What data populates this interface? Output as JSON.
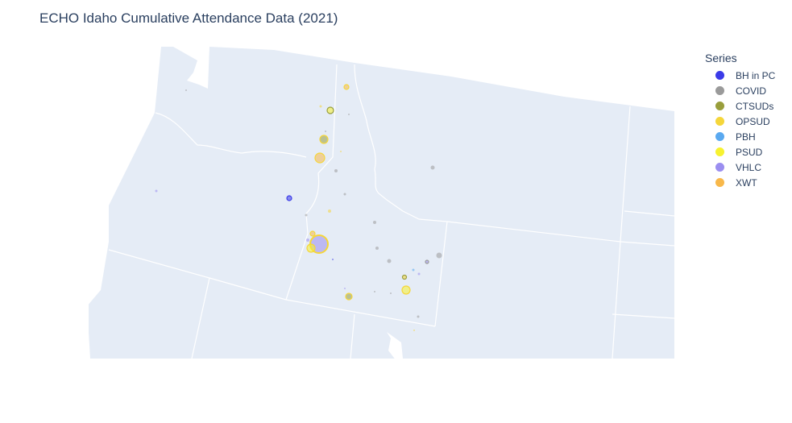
{
  "title": "ECHO Idaho Cumulative Attendance Data (2021)",
  "legend": {
    "title": "Series",
    "items": [
      {
        "label": "BH in PC",
        "color": "#3b3be8"
      },
      {
        "label": "COVID",
        "color": "#9a9a9a"
      },
      {
        "label": "CTSUDs",
        "color": "#999e3c"
      },
      {
        "label": "OPSUD",
        "color": "#f5d63a"
      },
      {
        "label": "PBH",
        "color": "#5aa9f0"
      },
      {
        "label": "PSUD",
        "color": "#f7f230"
      },
      {
        "label": "VHLC",
        "color": "#9b8ef0"
      },
      {
        "label": "XWT",
        "color": "#f8b84a"
      }
    ]
  },
  "map": {
    "land_color": "#e5ecf6",
    "border_color": "#ffffff"
  }
}
